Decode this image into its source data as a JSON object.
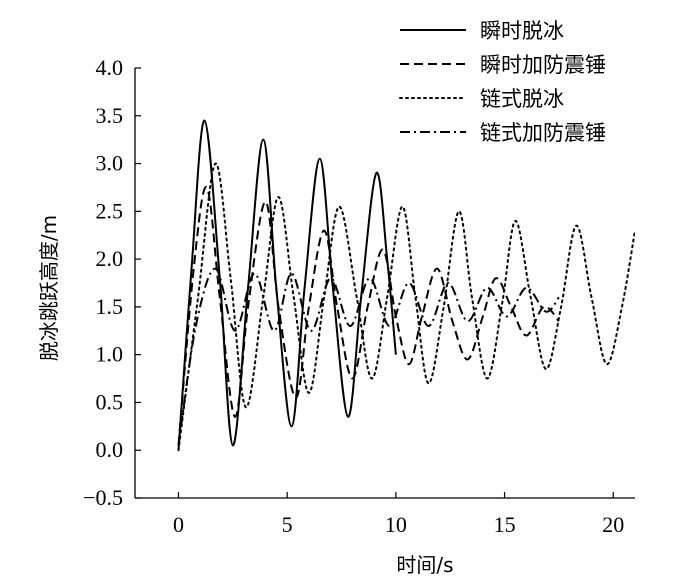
{
  "chart_data": {
    "type": "line",
    "title": "",
    "xlabel": "时间/s",
    "ylabel": "脱冰跳跃高度/m",
    "xlim": [
      -2,
      21
    ],
    "ylim": [
      -0.5,
      4.0
    ],
    "xticks": [
      0,
      5,
      10,
      15,
      20
    ],
    "yticks": [
      -0.5,
      0.0,
      0.5,
      1.0,
      1.5,
      2.0,
      2.5,
      3.0,
      3.5,
      4.0
    ],
    "xtick_labels": [
      "0",
      "5",
      "10",
      "15",
      "20"
    ],
    "ytick_labels": [
      "−0.5",
      "0.0",
      "0.5",
      "1.0",
      "1.5",
      "2.0",
      "2.5",
      "3.0",
      "3.5",
      "4.0"
    ],
    "grid": false,
    "legend_position": "top-right",
    "series": [
      {
        "name": "瞬时脱冰",
        "style": "solid",
        "color": "#000000",
        "points": [
          [
            0.0,
            0.0
          ],
          [
            0.6,
            1.9
          ],
          [
            1.2,
            3.45
          ],
          [
            1.9,
            1.8
          ],
          [
            2.5,
            0.05
          ],
          [
            3.2,
            1.7
          ],
          [
            3.9,
            3.25
          ],
          [
            4.5,
            1.7
          ],
          [
            5.2,
            0.25
          ],
          [
            5.8,
            1.7
          ],
          [
            6.5,
            3.05
          ],
          [
            7.1,
            1.7
          ],
          [
            7.8,
            0.35
          ],
          [
            8.4,
            1.6
          ],
          [
            9.1,
            2.9
          ],
          [
            9.6,
            2.0
          ],
          [
            10.0,
            1.0
          ]
        ]
      },
      {
        "name": "瞬时加防震锤",
        "style": "dashed",
        "color": "#000000",
        "points": [
          [
            0.0,
            0.05
          ],
          [
            0.7,
            1.9
          ],
          [
            1.3,
            2.75
          ],
          [
            1.9,
            1.6
          ],
          [
            2.6,
            0.35
          ],
          [
            3.2,
            1.5
          ],
          [
            4.0,
            2.6
          ],
          [
            4.6,
            1.5
          ],
          [
            5.4,
            0.55
          ],
          [
            6.0,
            1.5
          ],
          [
            6.7,
            2.3
          ],
          [
            7.3,
            1.5
          ],
          [
            8.0,
            0.75
          ],
          [
            8.7,
            1.5
          ],
          [
            9.4,
            2.1
          ],
          [
            10.0,
            1.4
          ],
          [
            10.6,
            0.9
          ],
          [
            11.2,
            1.4
          ],
          [
            11.9,
            1.9
          ],
          [
            12.6,
            1.35
          ],
          [
            13.3,
            0.95
          ],
          [
            14.0,
            1.4
          ],
          [
            14.6,
            1.8
          ],
          [
            15.3,
            1.5
          ],
          [
            16.0,
            1.2
          ],
          [
            16.8,
            1.5
          ],
          [
            17.5,
            1.35
          ]
        ]
      },
      {
        "name": "链式脱冰",
        "style": "dotted",
        "color": "#000000",
        "points": [
          [
            0.0,
            0.0
          ],
          [
            0.9,
            1.6
          ],
          [
            1.7,
            3.0
          ],
          [
            2.4,
            1.8
          ],
          [
            3.1,
            0.45
          ],
          [
            3.9,
            1.6
          ],
          [
            4.6,
            2.65
          ],
          [
            5.3,
            1.6
          ],
          [
            6.0,
            0.6
          ],
          [
            6.7,
            1.6
          ],
          [
            7.4,
            2.55
          ],
          [
            8.2,
            1.6
          ],
          [
            8.9,
            0.75
          ],
          [
            9.6,
            1.6
          ],
          [
            10.3,
            2.55
          ],
          [
            10.9,
            1.6
          ],
          [
            11.5,
            0.7
          ],
          [
            12.2,
            1.5
          ],
          [
            12.9,
            2.5
          ],
          [
            13.5,
            1.6
          ],
          [
            14.2,
            0.75
          ],
          [
            14.9,
            1.55
          ],
          [
            15.5,
            2.4
          ],
          [
            16.2,
            1.6
          ],
          [
            16.9,
            0.85
          ],
          [
            17.6,
            1.5
          ],
          [
            18.3,
            2.35
          ],
          [
            19.0,
            1.6
          ],
          [
            19.7,
            0.9
          ],
          [
            20.4,
            1.5
          ],
          [
            21.0,
            2.3
          ]
        ]
      },
      {
        "name": "链式加防震锤",
        "style": "dashdot",
        "color": "#000000",
        "points": [
          [
            0.0,
            0.05
          ],
          [
            0.8,
            1.3
          ],
          [
            1.7,
            1.9
          ],
          [
            2.6,
            1.25
          ],
          [
            3.5,
            1.85
          ],
          [
            4.4,
            1.25
          ],
          [
            5.2,
            1.85
          ],
          [
            6.1,
            1.25
          ],
          [
            7.0,
            1.8
          ],
          [
            7.9,
            1.3
          ],
          [
            8.8,
            1.8
          ],
          [
            9.7,
            1.3
          ],
          [
            10.6,
            1.75
          ],
          [
            11.5,
            1.3
          ],
          [
            12.4,
            1.75
          ],
          [
            13.3,
            1.35
          ],
          [
            14.2,
            1.7
          ],
          [
            15.1,
            1.4
          ],
          [
            16.0,
            1.7
          ],
          [
            16.9,
            1.45
          ],
          [
            17.5,
            1.6
          ]
        ]
      }
    ]
  }
}
